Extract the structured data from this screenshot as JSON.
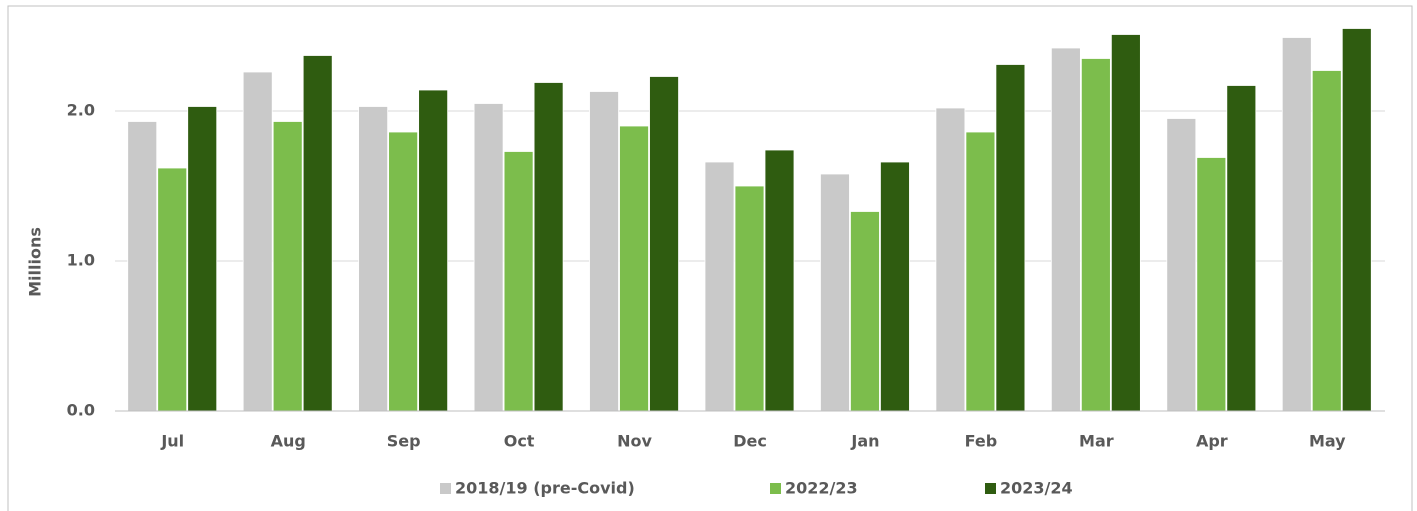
{
  "chart_data": {
    "type": "bar",
    "y_label": "Millions",
    "categories": [
      "Jul",
      "Aug",
      "Sep",
      "Oct",
      "Nov",
      "Dec",
      "Jan",
      "Feb",
      "Mar",
      "Apr",
      "May"
    ],
    "series": [
      {
        "name": "2018/19 (pre-Covid)",
        "color": "#c9c9c9",
        "values": [
          1.93,
          2.26,
          2.03,
          2.05,
          2.13,
          1.66,
          1.58,
          2.02,
          2.42,
          1.95,
          2.49
        ]
      },
      {
        "name": "2022/23",
        "color": "#7cbd4c",
        "values": [
          1.62,
          1.93,
          1.86,
          1.73,
          1.9,
          1.5,
          1.33,
          1.86,
          2.35,
          1.69,
          2.27
        ]
      },
      {
        "name": "2023/24",
        "color": "#2f5c10",
        "values": [
          2.03,
          2.37,
          2.14,
          2.19,
          2.23,
          1.74,
          1.66,
          2.31,
          2.51,
          2.17,
          2.55
        ]
      }
    ],
    "ylim": [
      0,
      2.6
    ],
    "yticks": [
      {
        "value": 0,
        "label": "0.0"
      },
      {
        "value": 1,
        "label": "1.0"
      },
      {
        "value": 2,
        "label": "2.0"
      }
    ],
    "grid": true,
    "legend": "bottom"
  }
}
